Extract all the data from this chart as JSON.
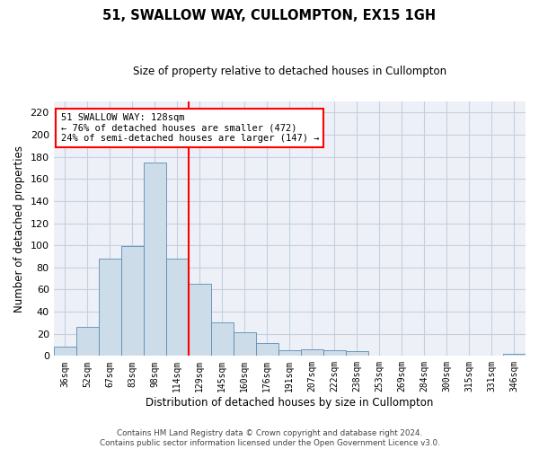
{
  "title": "51, SWALLOW WAY, CULLOMPTON, EX15 1GH",
  "subtitle": "Size of property relative to detached houses in Cullompton",
  "xlabel": "Distribution of detached houses by size in Cullompton",
  "ylabel": "Number of detached properties",
  "categories": [
    "36sqm",
    "52sqm",
    "67sqm",
    "83sqm",
    "98sqm",
    "114sqm",
    "129sqm",
    "145sqm",
    "160sqm",
    "176sqm",
    "191sqm",
    "207sqm",
    "222sqm",
    "238sqm",
    "253sqm",
    "269sqm",
    "284sqm",
    "300sqm",
    "315sqm",
    "331sqm",
    "346sqm"
  ],
  "values": [
    8,
    26,
    88,
    99,
    175,
    88,
    65,
    30,
    21,
    12,
    5,
    6,
    5,
    4,
    0,
    0,
    0,
    0,
    0,
    0,
    2
  ],
  "bar_color": "#ccdce9",
  "bar_edge_color": "#5a8db5",
  "grid_color": "#c5cfe0",
  "vline_index": 6,
  "vline_color": "red",
  "annotation_text": "51 SWALLOW WAY: 128sqm\n← 76% of detached houses are smaller (472)\n24% of semi-detached houses are larger (147) →",
  "annotation_box_color": "white",
  "annotation_box_edge": "red",
  "ylim": [
    0,
    230
  ],
  "yticks": [
    0,
    20,
    40,
    60,
    80,
    100,
    120,
    140,
    160,
    180,
    200,
    220
  ],
  "footer": "Contains HM Land Registry data © Crown copyright and database right 2024.\nContains public sector information licensed under the Open Government Licence v3.0.",
  "bg_color": "#edf1f7"
}
